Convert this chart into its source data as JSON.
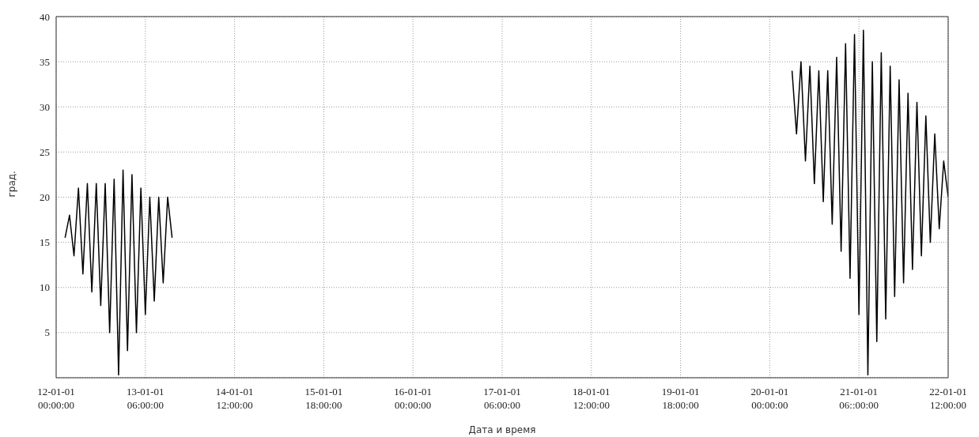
{
  "chart_data": {
    "type": "line",
    "xlabel": "Дата и время",
    "ylabel": "град.",
    "categories": [
      "12-01-01 00:00:00",
      null,
      null,
      null,
      null,
      null,
      null,
      null,
      null,
      null,
      null,
      null,
      null,
      null,
      null,
      null,
      null,
      null,
      null,
      null,
      "13-01-01 06:00:00",
      null,
      null,
      null,
      null,
      null,
      null,
      null,
      null,
      null,
      null,
      null,
      null,
      null,
      null,
      null,
      null,
      null,
      null,
      null,
      "14-01-01 12:00:00",
      null,
      null,
      null,
      null,
      null,
      null,
      null,
      null,
      null,
      null,
      null,
      null,
      null,
      null,
      null,
      null,
      null,
      null,
      null,
      "15-01-01 18:00:00",
      null,
      null,
      null,
      null,
      null,
      null,
      null,
      null,
      null,
      null,
      null,
      null,
      null,
      null,
      null,
      null,
      null,
      null,
      null,
      "16-01-01 00:00:00",
      null,
      null,
      null,
      null,
      null,
      null,
      null,
      null,
      null,
      null,
      null,
      null,
      null,
      null,
      null,
      null,
      null,
      null,
      null,
      "17-01-01 06:00:00",
      null,
      null,
      null,
      null,
      null,
      null,
      null,
      null,
      null,
      null,
      null,
      null,
      null,
      null,
      null,
      null,
      null,
      null,
      null,
      "18-01-01 12:00:00",
      null,
      null,
      null,
      null,
      null,
      null,
      null,
      null,
      null,
      null,
      null,
      null,
      null,
      null,
      null,
      null,
      null,
      null,
      null,
      "19-01-01 18:00:00",
      null,
      null,
      null,
      null,
      null,
      null,
      null,
      null,
      null,
      null,
      null,
      null,
      null,
      null,
      null,
      null,
      null,
      null,
      null,
      "20-01-01 00:00:00",
      null,
      null,
      null,
      null,
      null,
      null,
      null,
      null,
      null,
      null,
      null,
      null,
      null,
      null,
      null,
      null,
      null,
      null,
      null,
      "21-01-01 06::00:00",
      null,
      null,
      null,
      null,
      null,
      null,
      null,
      null,
      null,
      null,
      null,
      null,
      null,
      null,
      null,
      null,
      null,
      null,
      null,
      "22-01-01 12:00:00"
    ],
    "ylim": [
      0,
      40
    ],
    "yticks": [
      5,
      10,
      15,
      20,
      25,
      30,
      35,
      40
    ],
    "grid": true,
    "marker": "none",
    "line_style": "solid",
    "series": [
      {
        "color": "#000000",
        "values": [
          null,
          null,
          15.5,
          18,
          13.5,
          21,
          11.5,
          21.5,
          9.5,
          21.5,
          8,
          21.5,
          5,
          22,
          0.3,
          23,
          3,
          22.5,
          5,
          21,
          7,
          20,
          8.5,
          20,
          10.5,
          20,
          15.5,
          null,
          null,
          null,
          null,
          null,
          null,
          null,
          null,
          null,
          null,
          null,
          null,
          null,
          null,
          null,
          null,
          null,
          null,
          null,
          null,
          null,
          null,
          null,
          null,
          null,
          null,
          null,
          null,
          null,
          null,
          null,
          null,
          null,
          null,
          null,
          null,
          null,
          null,
          null,
          null,
          null,
          null,
          null,
          null,
          null,
          null,
          null,
          null,
          null,
          null,
          null,
          null,
          null,
          null,
          null,
          null,
          null,
          null,
          null,
          null,
          null,
          null,
          null,
          null,
          null,
          null,
          null,
          null,
          null,
          null,
          null,
          null,
          null,
          null,
          null,
          null,
          null,
          null,
          null,
          null,
          null,
          null,
          null,
          null,
          null,
          null,
          null,
          null,
          null,
          null,
          null,
          null,
          null,
          null,
          null,
          null,
          null,
          null,
          null,
          null,
          null,
          null,
          null,
          null,
          null,
          null,
          null,
          null,
          null,
          null,
          null,
          null,
          null,
          null,
          null,
          null,
          null,
          null,
          null,
          null,
          null,
          null,
          null,
          null,
          null,
          null,
          null,
          null,
          null,
          null,
          null,
          null,
          null,
          null,
          null,
          null,
          null,
          null,
          34,
          27,
          35,
          24,
          34.5,
          21.5,
          34,
          19.5,
          34,
          17,
          35.5,
          14,
          37,
          11,
          38,
          7,
          38.5,
          0.3,
          35,
          4,
          36,
          6.5,
          34.5,
          9,
          33,
          10.5,
          31.5,
          12,
          30.5,
          13.5,
          29,
          15,
          27,
          16.5,
          24,
          20
        ]
      }
    ]
  }
}
